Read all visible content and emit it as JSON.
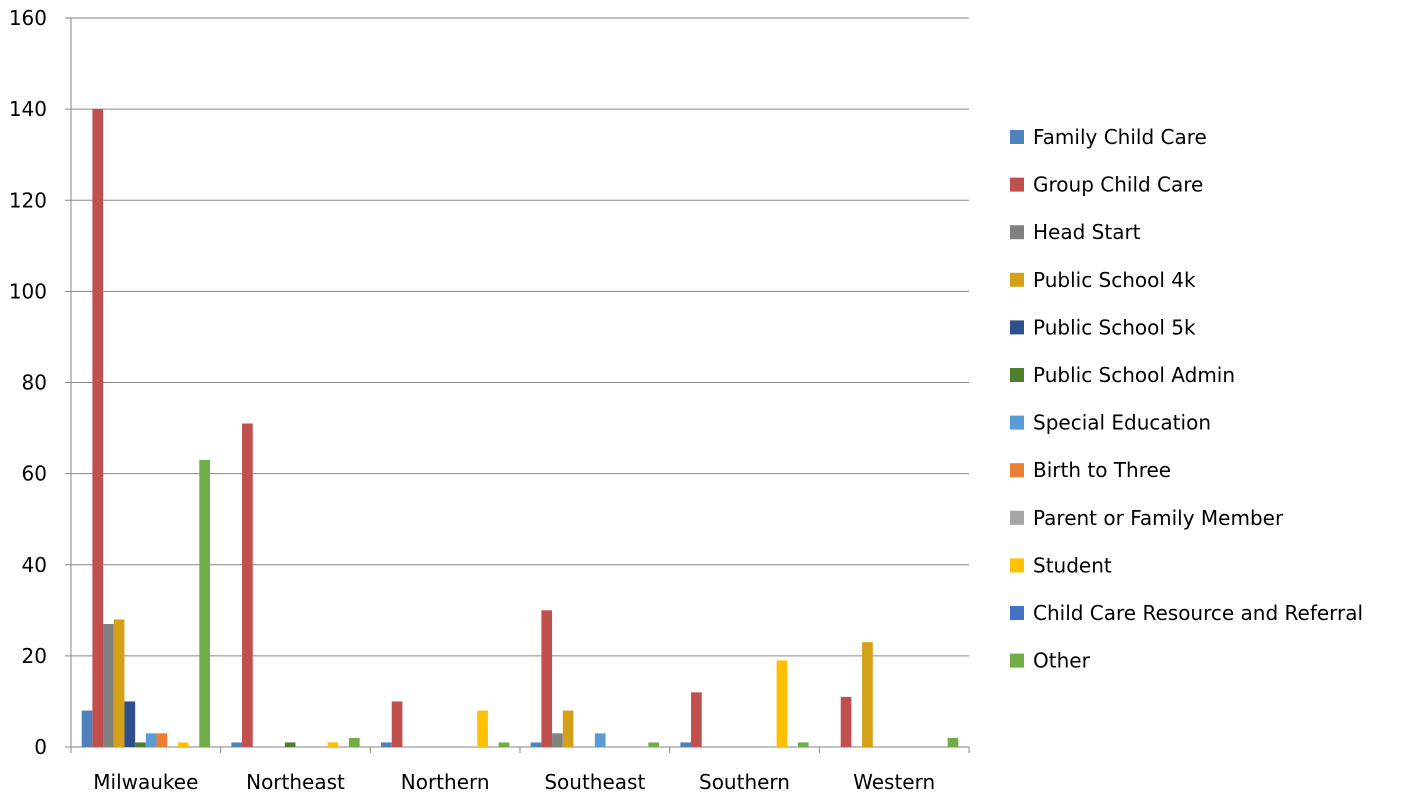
{
  "chart_data": {
    "type": "bar",
    "title": "",
    "xlabel": "",
    "ylabel": "",
    "ylim": [
      0,
      160
    ],
    "yticks": [
      0,
      20,
      40,
      60,
      80,
      100,
      120,
      140,
      160
    ],
    "grid": true,
    "legend_position": "right",
    "categories": [
      "Milwaukee",
      "Northeast",
      "Northern",
      "Southeast",
      "Southern",
      "Western"
    ],
    "series": [
      {
        "name": "Family Child Care",
        "color": "#4F81BD",
        "values": [
          8,
          1,
          1,
          1,
          1,
          0
        ]
      },
      {
        "name": "Group Child Care",
        "color": "#C0504D",
        "values": [
          140,
          71,
          10,
          30,
          12,
          11
        ]
      },
      {
        "name": "Head Start",
        "color": "#808080",
        "values": [
          27,
          0,
          0,
          3,
          0,
          0
        ]
      },
      {
        "name": "Public School 4k",
        "color": "#D4A017",
        "values": [
          28,
          0,
          0,
          8,
          0,
          23
        ]
      },
      {
        "name": "Public School 5k",
        "color": "#2E4E8E",
        "values": [
          10,
          0,
          0,
          0,
          0,
          0
        ]
      },
      {
        "name": "Public School Admin",
        "color": "#4E7F2E",
        "values": [
          1,
          1,
          0,
          0,
          0,
          0
        ]
      },
      {
        "name": "Special Education",
        "color": "#5B9BD5",
        "values": [
          3,
          0,
          0,
          3,
          0,
          0
        ]
      },
      {
        "name": "Birth to Three",
        "color": "#ED7D31",
        "values": [
          3,
          0,
          0,
          0,
          0,
          0
        ]
      },
      {
        "name": "Parent or Family Member",
        "color": "#A5A5A5",
        "values": [
          0,
          0,
          0,
          0,
          0,
          0
        ]
      },
      {
        "name": "Student",
        "color": "#FFC000",
        "values": [
          1,
          1,
          8,
          0,
          19,
          0
        ]
      },
      {
        "name": "Child Care Resource and Referral",
        "color": "#4472C4",
        "values": [
          0,
          0,
          0,
          0,
          0,
          0
        ]
      },
      {
        "name": "Other",
        "color": "#70AD47",
        "values": [
          63,
          2,
          1,
          1,
          1,
          2
        ]
      }
    ]
  }
}
